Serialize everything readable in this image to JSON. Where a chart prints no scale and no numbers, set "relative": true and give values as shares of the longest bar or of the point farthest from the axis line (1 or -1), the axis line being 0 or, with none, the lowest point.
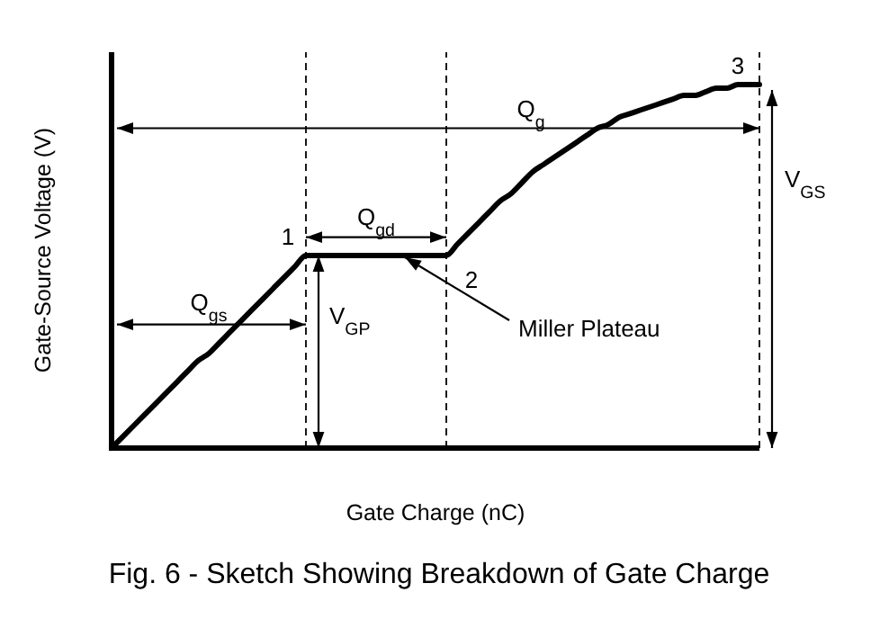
{
  "chart_data": {
    "type": "line",
    "relative": true,
    "title": "Fig. 6 - Sketch Showing Breakdown of Gate Charge",
    "xlabel": "Gate Charge (nC)",
    "ylabel": "Gate-Source Voltage (V)",
    "categories": [
      null,
      null,
      null,
      null,
      null,
      null,
      null,
      null,
      null,
      null,
      null,
      null,
      null,
      null,
      null,
      null,
      null,
      null,
      null,
      null,
      null,
      null,
      null,
      null,
      null,
      null,
      null,
      null,
      null,
      null,
      null,
      null,
      null,
      null,
      null,
      null,
      null,
      null,
      null,
      null,
      null,
      null,
      null,
      null,
      null,
      null,
      null,
      null,
      null,
      null,
      null,
      null,
      null,
      null,
      null,
      null,
      null,
      null,
      null,
      null,
      null
    ],
    "series": [
      {
        "color": "#000000",
        "values": [
          0,
          0.03,
          0.06,
          0.09,
          0.12,
          0.15,
          0.18,
          0.21,
          0.24,
          0.26,
          0.29,
          0.32,
          0.35,
          0.38,
          0.41,
          0.44,
          0.47,
          0.5,
          0.53,
          0.53,
          0.53,
          0.53,
          0.53,
          0.53,
          0.53,
          0.53,
          0.53,
          0.53,
          0.53,
          0.53,
          0.53,
          0.53,
          0.56,
          0.59,
          0.62,
          0.65,
          0.68,
          0.7,
          0.73,
          0.76,
          0.78,
          0.8,
          0.82,
          0.84,
          0.86,
          0.88,
          0.89,
          0.91,
          0.92,
          0.93,
          0.94,
          0.95,
          0.96,
          0.97,
          0.97,
          0.98,
          0.99,
          0.99,
          1,
          1,
          1
        ]
      }
    ],
    "ref_lines": [
      {
        "axis": "y",
        "value": 0.88,
        "label": "Q$_{g}$"
      }
    ],
    "annotations": [
      "Q$_{gd}$",
      "Q$_{gs}$",
      "V$_{GS}$",
      "V$_{GP}$",
      "Miller Plateau",
      "1",
      "2",
      "3"
    ]
  }
}
